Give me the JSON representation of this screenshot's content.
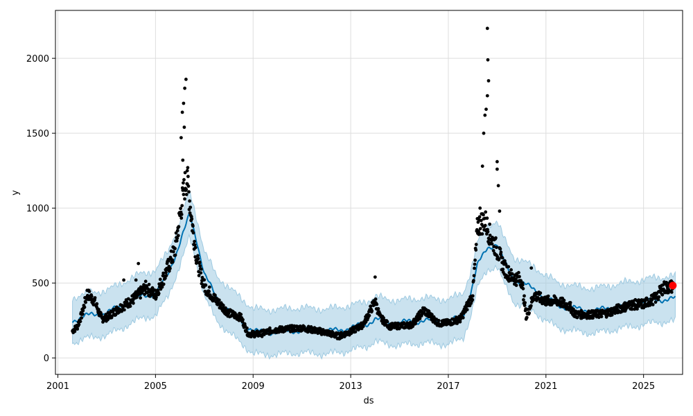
{
  "chart_data": {
    "type": "scatter",
    "title": "",
    "xlabel": "ds",
    "ylabel": "y",
    "xlim": [
      2000.9,
      2026.6
    ],
    "ylim": [
      -110,
      2320
    ],
    "grid": true,
    "x_ticks": [
      2001,
      2005,
      2009,
      2013,
      2017,
      2021,
      2025
    ],
    "x_tick_labels": [
      "2001",
      "2005",
      "2009",
      "2013",
      "2017",
      "2021",
      "2025"
    ],
    "y_ticks": [
      0,
      500,
      1000,
      1500,
      2000
    ],
    "y_tick_labels": [
      "0",
      "500",
      "1000",
      "1500",
      "2000"
    ],
    "colors": {
      "observed": "#000000",
      "forecast": "#0072B2",
      "interval": "#9ECAE1",
      "last_point": "#FF0000",
      "grid": "#DDDDDD"
    },
    "forecast_anchors": [
      [
        2001.6,
        250
      ],
      [
        2002.0,
        275
      ],
      [
        2002.5,
        290
      ],
      [
        2003.0,
        300
      ],
      [
        2003.5,
        340
      ],
      [
        2004.0,
        380
      ],
      [
        2004.5,
        420
      ],
      [
        2005.0,
        430
      ],
      [
        2005.5,
        560
      ],
      [
        2005.9,
        720
      ],
      [
        2006.2,
        860
      ],
      [
        2006.4,
        960
      ],
      [
        2006.7,
        780
      ],
      [
        2007.0,
        560
      ],
      [
        2007.5,
        400
      ],
      [
        2008.0,
        320
      ],
      [
        2008.5,
        250
      ],
      [
        2009.0,
        180
      ],
      [
        2009.5,
        170
      ],
      [
        2010.0,
        175
      ],
      [
        2011.0,
        185
      ],
      [
        2012.0,
        175
      ],
      [
        2013.0,
        200
      ],
      [
        2013.7,
        230
      ],
      [
        2014.0,
        260
      ],
      [
        2014.5,
        240
      ],
      [
        2015.0,
        235
      ],
      [
        2016.0,
        250
      ],
      [
        2017.0,
        240
      ],
      [
        2017.6,
        280
      ],
      [
        2017.9,
        420
      ],
      [
        2018.2,
        620
      ],
      [
        2018.6,
        740
      ],
      [
        2019.0,
        760
      ],
      [
        2019.3,
        640
      ],
      [
        2019.7,
        520
      ],
      [
        2020.0,
        500
      ],
      [
        2020.5,
        460
      ],
      [
        2021.0,
        400
      ],
      [
        2021.5,
        350
      ],
      [
        2022.0,
        335
      ],
      [
        2022.5,
        320
      ],
      [
        2023.0,
        315
      ],
      [
        2023.5,
        330
      ],
      [
        2024.0,
        345
      ],
      [
        2024.5,
        360
      ],
      [
        2025.0,
        370
      ],
      [
        2025.5,
        390
      ],
      [
        2026.0,
        390
      ],
      [
        2026.3,
        395
      ]
    ],
    "interval_halfwidth": 150,
    "observed_anchors": [
      [
        2001.6,
        180
      ],
      [
        2001.8,
        210
      ],
      [
        2002.0,
        300
      ],
      [
        2002.2,
        430
      ],
      [
        2002.5,
        380
      ],
      [
        2002.8,
        260
      ],
      [
        2003.0,
        270
      ],
      [
        2003.5,
        330
      ],
      [
        2004.0,
        380
      ],
      [
        2004.3,
        420
      ],
      [
        2004.6,
        470
      ],
      [
        2005.0,
        420
      ],
      [
        2005.4,
        560
      ],
      [
        2005.8,
        720
      ],
      [
        2006.0,
        950
      ],
      [
        2006.2,
        1150
      ],
      [
        2006.3,
        1200
      ],
      [
        2006.5,
        900
      ],
      [
        2006.7,
        650
      ],
      [
        2007.0,
        480
      ],
      [
        2007.5,
        380
      ],
      [
        2008.0,
        300
      ],
      [
        2008.5,
        270
      ],
      [
        2008.8,
        160
      ],
      [
        2009.3,
        160
      ],
      [
        2009.8,
        185
      ],
      [
        2010.5,
        195
      ],
      [
        2011.0,
        200
      ],
      [
        2012.0,
        170
      ],
      [
        2012.5,
        145
      ],
      [
        2013.0,
        175
      ],
      [
        2013.5,
        220
      ],
      [
        2014.0,
        380
      ],
      [
        2014.2,
        270
      ],
      [
        2014.6,
        210
      ],
      [
        2015.5,
        220
      ],
      [
        2016.0,
        320
      ],
      [
        2016.6,
        230
      ],
      [
        2017.0,
        235
      ],
      [
        2017.5,
        260
      ],
      [
        2018.0,
        420
      ],
      [
        2018.2,
        880
      ],
      [
        2018.5,
        920
      ],
      [
        2018.7,
        820
      ],
      [
        2019.0,
        720
      ],
      [
        2019.3,
        600
      ],
      [
        2019.6,
        540
      ],
      [
        2020.0,
        520
      ],
      [
        2020.2,
        270
      ],
      [
        2020.5,
        420
      ],
      [
        2021.0,
        380
      ],
      [
        2021.5,
        380
      ],
      [
        2022.0,
        340
      ],
      [
        2022.2,
        290
      ],
      [
        2023.0,
        290
      ],
      [
        2023.5,
        300
      ],
      [
        2024.0,
        330
      ],
      [
        2024.5,
        355
      ],
      [
        2025.0,
        360
      ],
      [
        2025.5,
        400
      ],
      [
        2025.8,
        470
      ],
      [
        2026.0,
        470
      ],
      [
        2026.2,
        480
      ]
    ],
    "observed_spikes": [
      [
        2006.05,
        1470
      ],
      [
        2006.1,
        1640
      ],
      [
        2006.15,
        1700
      ],
      [
        2006.2,
        1800
      ],
      [
        2006.25,
        1860
      ],
      [
        2006.18,
        1540
      ],
      [
        2006.12,
        1320
      ],
      [
        2006.3,
        1250
      ],
      [
        2003.7,
        520
      ],
      [
        2004.2,
        520
      ],
      [
        2004.3,
        630
      ],
      [
        2014.0,
        540
      ],
      [
        2018.3,
        1000
      ],
      [
        2018.4,
        1280
      ],
      [
        2018.45,
        1500
      ],
      [
        2018.5,
        1620
      ],
      [
        2018.55,
        1660
      ],
      [
        2018.6,
        1750
      ],
      [
        2018.65,
        1850
      ],
      [
        2018.62,
        1990
      ],
      [
        2018.6,
        2200
      ],
      [
        2019.0,
        1310
      ],
      [
        2019.05,
        1150
      ],
      [
        2019.1,
        980
      ],
      [
        2019.0,
        1260
      ],
      [
        2020.4,
        600
      ]
    ],
    "last_point": [
      2026.2,
      483
    ]
  }
}
